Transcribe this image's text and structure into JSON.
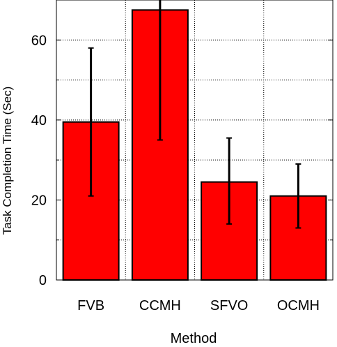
{
  "chart_data": {
    "type": "bar",
    "categories": [
      "FVB",
      "CCMH",
      "SFVO",
      "OCMH"
    ],
    "values": [
      39.5,
      67.5,
      24.5,
      21
    ],
    "error_bars": {
      "lower": [
        21,
        35,
        14,
        13
      ],
      "upper": [
        58,
        72,
        35.5,
        29
      ]
    },
    "title": "",
    "xlabel": "Method",
    "ylabel": "Task Completion Time   (Sec)",
    "ylim": [
      0,
      70
    ],
    "yticks": [
      0,
      20,
      40,
      60
    ],
    "grid": true,
    "colors": {
      "bar": "#ff0000",
      "stroke": "#000000",
      "grid": "#000000"
    }
  }
}
